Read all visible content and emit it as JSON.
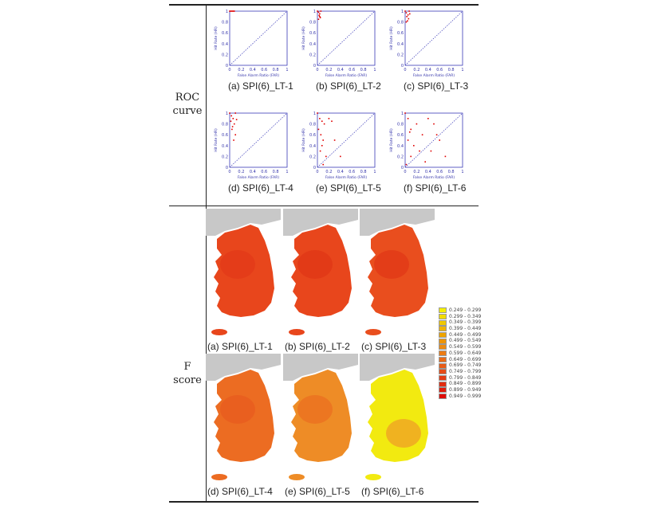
{
  "row_labels": {
    "roc": [
      "ROC",
      "curve"
    ],
    "fscore": [
      "F",
      "score"
    ]
  },
  "roc_axes": {
    "xlabel": "False Alarm Ratio (FAR)",
    "ylabel": "Hit Rate (HR)",
    "ticks": [
      "0",
      "0.2",
      "0.4",
      "0.6",
      "0.8",
      "1"
    ],
    "line_color": "#3a3ab8",
    "point_color": "#e00000"
  },
  "chart_data": [
    {
      "type": "scatter",
      "caption": "(a) SPI(6)_LT-1",
      "xlim": [
        0,
        1
      ],
      "ylim": [
        0,
        1
      ],
      "points": [
        [
          0,
          1
        ],
        [
          0.02,
          1
        ],
        [
          0.04,
          1
        ],
        [
          0.06,
          1
        ],
        [
          0.08,
          1
        ]
      ]
    },
    {
      "type": "scatter",
      "caption": "(b) SPI(6)_LT-2",
      "xlim": [
        0,
        1
      ],
      "ylim": [
        0,
        1
      ],
      "points": [
        [
          0,
          1
        ],
        [
          0.02,
          0.98
        ],
        [
          0.04,
          0.95
        ],
        [
          0.03,
          0.92
        ],
        [
          0.05,
          0.88
        ],
        [
          0.02,
          0.85
        ],
        [
          0.06,
          1
        ],
        [
          0.04,
          0.9
        ]
      ]
    },
    {
      "type": "scatter",
      "caption": "(c) SPI(6)_LT-3",
      "xlim": [
        0,
        1
      ],
      "ylim": [
        0,
        1
      ],
      "points": [
        [
          0,
          1
        ],
        [
          0.02,
          0.97
        ],
        [
          0.05,
          0.93
        ],
        [
          0.03,
          0.9
        ],
        [
          0.06,
          0.86
        ],
        [
          0.04,
          0.82
        ],
        [
          0.08,
          0.95
        ],
        [
          0.02,
          0.8
        ],
        [
          0.07,
          1
        ]
      ]
    },
    {
      "type": "scatter",
      "caption": "(d) SPI(6)_LT-4",
      "xlim": [
        0,
        1
      ],
      "ylim": [
        0,
        1
      ],
      "points": [
        [
          0,
          1
        ],
        [
          0.03,
          0.95
        ],
        [
          0.06,
          0.9
        ],
        [
          0.02,
          0.85
        ],
        [
          0.08,
          0.8
        ],
        [
          0.05,
          0.75
        ],
        [
          0.1,
          0.6
        ],
        [
          0.04,
          0.7
        ],
        [
          0.07,
          0.5
        ],
        [
          0.1,
          1
        ],
        [
          0.12,
          0.88
        ]
      ]
    },
    {
      "type": "scatter",
      "caption": "(e) SPI(6)_LT-5",
      "xlim": [
        0,
        1
      ],
      "ylim": [
        0,
        1
      ],
      "points": [
        [
          0,
          1
        ],
        [
          0.04,
          0.9
        ],
        [
          0.08,
          0.85
        ],
        [
          0.12,
          0.8
        ],
        [
          0.02,
          0.7
        ],
        [
          0.06,
          0.6
        ],
        [
          0.1,
          0.5
        ],
        [
          0.2,
          0.9
        ],
        [
          0.3,
          0.5
        ],
        [
          0.05,
          0.3
        ],
        [
          0.15,
          0.2
        ],
        [
          0.25,
          0.85
        ],
        [
          0.08,
          0.4
        ],
        [
          0.4,
          0.2
        ],
        [
          0.1,
          0.05
        ]
      ]
    },
    {
      "type": "scatter",
      "caption": "(f) SPI(6)_LT-6",
      "xlim": [
        0,
        1
      ],
      "ylim": [
        0,
        1
      ],
      "points": [
        [
          0,
          1
        ],
        [
          0.05,
          0.9
        ],
        [
          0.1,
          0.7
        ],
        [
          0.2,
          0.8
        ],
        [
          0.3,
          0.6
        ],
        [
          0.15,
          0.4
        ],
        [
          0.5,
          0.8
        ],
        [
          0.45,
          0.3
        ],
        [
          0.6,
          0.5
        ],
        [
          0.7,
          0.2
        ],
        [
          0.05,
          0.5
        ],
        [
          0.25,
          0.3
        ],
        [
          0.35,
          0.1
        ],
        [
          0.1,
          0.2
        ],
        [
          0.55,
          0.6
        ],
        [
          0.02,
          0.05
        ],
        [
          0.4,
          0.9
        ],
        [
          0.08,
          0.65
        ]
      ]
    }
  ],
  "maps": [
    {
      "caption": "(a) SPI(6)_LT-1",
      "fill": "#e8461c",
      "shade": "#e23818"
    },
    {
      "caption": "(b) SPI(6)_LT-2",
      "fill": "#e8461c",
      "shade": "#e03416"
    },
    {
      "caption": "(c) SPI(6)_LT-3",
      "fill": "#e94e1e",
      "shade": "#e03616"
    },
    {
      "caption": "(d) SPI(6)_LT-4",
      "fill": "#ec6c22",
      "shade": "#e85a1e"
    },
    {
      "caption": "(e) SPI(6)_LT-5",
      "fill": "#ee8c26",
      "shade": "#eb6c20"
    },
    {
      "caption": "(f) SPI(6)_LT-6",
      "fill": "#f2ea10",
      "shade": "#ef9a28"
    }
  ],
  "legend": [
    {
      "label": "0.249 - 0.299",
      "color": "#f5f000"
    },
    {
      "label": "0.299 - 0.349",
      "color": "#f2dc00"
    },
    {
      "label": "0.349 - 0.399",
      "color": "#f0c800"
    },
    {
      "label": "0.399 - 0.449",
      "color": "#efb400"
    },
    {
      "label": "0.449 - 0.499",
      "color": "#eea400"
    },
    {
      "label": "0.499 - 0.549",
      "color": "#ee9400"
    },
    {
      "label": "0.549 - 0.599",
      "color": "#ed8a10"
    },
    {
      "label": "0.599 - 0.649",
      "color": "#ec7c14"
    },
    {
      "label": "0.649 - 0.699",
      "color": "#ea6c18"
    },
    {
      "label": "0.699 - 0.749",
      "color": "#e85c18"
    },
    {
      "label": "0.749 - 0.799",
      "color": "#e64c18"
    },
    {
      "label": "0.799 - 0.849",
      "color": "#e43c14"
    },
    {
      "label": "0.849 - 0.899",
      "color": "#e22c10"
    },
    {
      "label": "0.899 - 0.949",
      "color": "#e01c0c"
    },
    {
      "label": "0.949 - 0.999",
      "color": "#de0c08"
    }
  ]
}
